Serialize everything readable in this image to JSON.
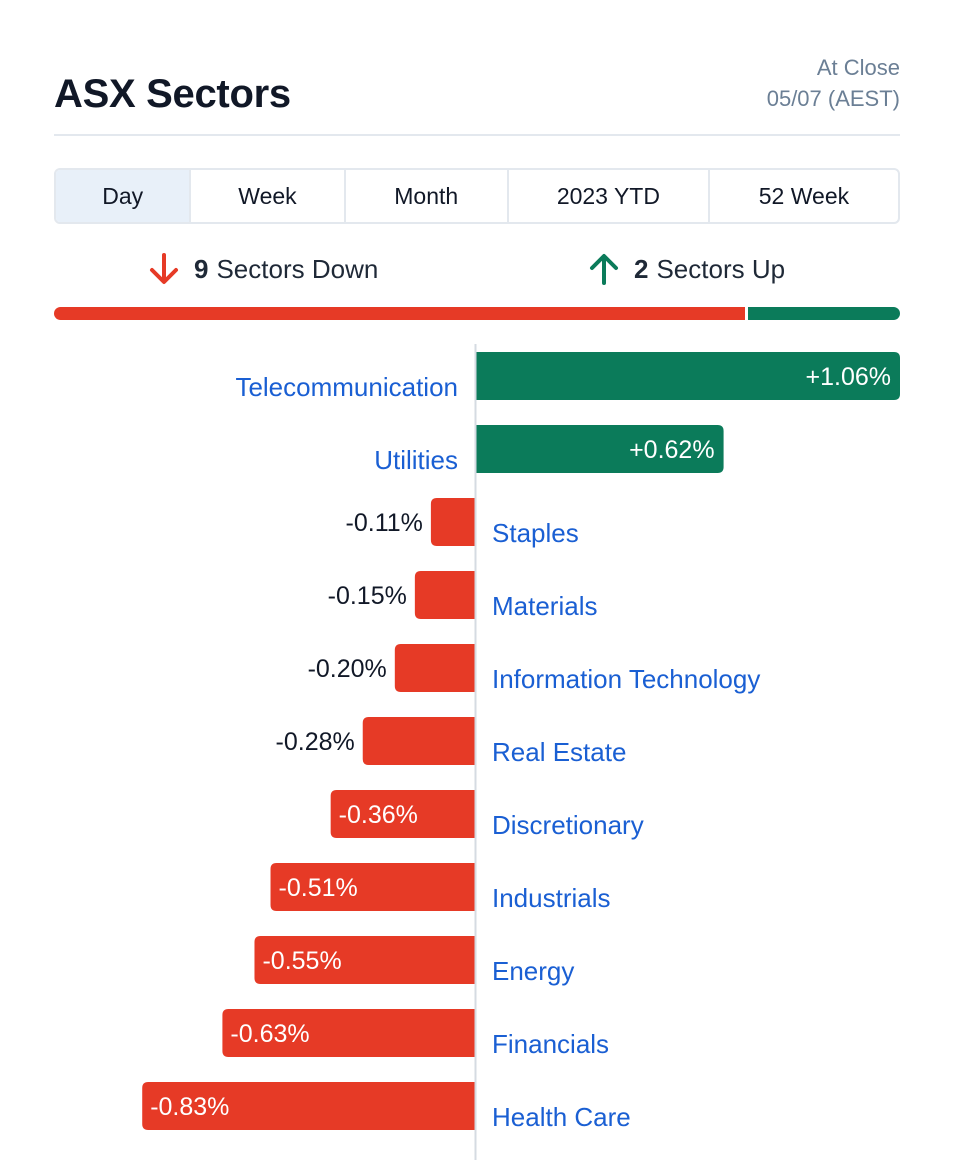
{
  "header": {
    "title": "ASX Sectors",
    "status_line1": "At Close",
    "status_line2": "05/07 (AEST)"
  },
  "tabs": [
    {
      "label": "Day",
      "active": true
    },
    {
      "label": "Week",
      "active": false
    },
    {
      "label": "Month",
      "active": false
    },
    {
      "label": "2023 YTD",
      "active": false
    },
    {
      "label": "52 Week",
      "active": false
    }
  ],
  "summary": {
    "down_count": "9",
    "down_label": "Sectors Down",
    "up_count": "2",
    "up_label": "Sectors Up",
    "down_icon": "arrow-down-icon",
    "up_icon": "arrow-up-icon"
  },
  "colors": {
    "down": "#e63a26",
    "up": "#0b7b5a",
    "link": "#1a5fd3",
    "axis": "#d5dbe2"
  },
  "chart_data": {
    "type": "bar",
    "orientation": "horizontal",
    "categories": [
      "Telecommunication",
      "Utilities",
      "Staples",
      "Materials",
      "Information Technology",
      "Real Estate",
      "Discretionary",
      "Industrials",
      "Energy",
      "Financials",
      "Health Care"
    ],
    "values": [
      1.06,
      0.62,
      -0.11,
      -0.15,
      -0.2,
      -0.28,
      -0.36,
      -0.51,
      -0.55,
      -0.63,
      -0.83
    ],
    "value_labels": [
      "+1.06%",
      "+0.62%",
      "-0.11%",
      "-0.15%",
      "-0.20%",
      "-0.28%",
      "-0.36%",
      "-0.51%",
      "-0.55%",
      "-0.63%",
      "-0.83%"
    ],
    "unit": "%"
  }
}
